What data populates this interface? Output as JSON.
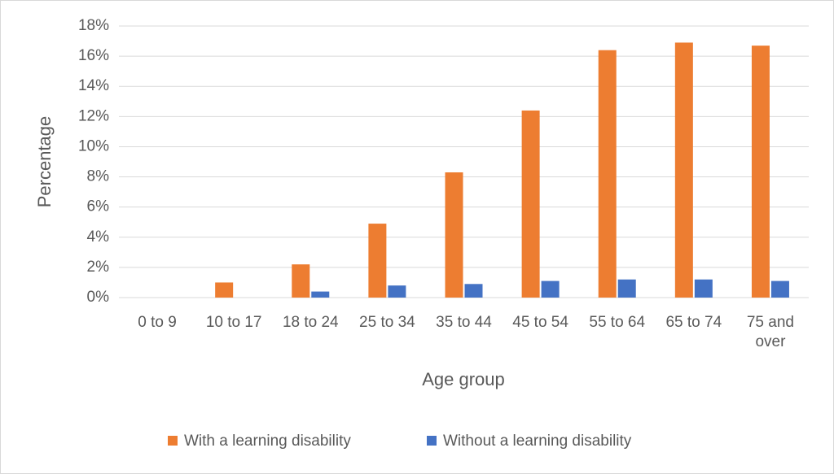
{
  "chart_data": {
    "type": "bar",
    "x_label": "Age group",
    "y_label": "Percentage",
    "categories": [
      "0 to 9",
      "10 to 17",
      "18 to 24",
      "25 to 34",
      "35 to 44",
      "45 to 54",
      "55 to 64",
      "65 to 74",
      "75 and over"
    ],
    "series": [
      {
        "name": "With a learning disability",
        "color": "#ed7d31",
        "values": [
          0,
          1.0,
          2.2,
          4.9,
          8.3,
          12.4,
          16.4,
          16.9,
          16.7
        ]
      },
      {
        "name": "Without a learning disability",
        "color": "#4472c4",
        "values": [
          0,
          0,
          0.4,
          0.8,
          0.9,
          1.1,
          1.2,
          1.2,
          1.1
        ]
      }
    ],
    "ylim": [
      0,
      18
    ],
    "yticks": [
      {
        "value": 0,
        "label": "0%"
      },
      {
        "value": 2,
        "label": "2%"
      },
      {
        "value": 4,
        "label": "4%"
      },
      {
        "value": 6,
        "label": "6%"
      },
      {
        "value": 8,
        "label": "8%"
      },
      {
        "value": 10,
        "label": "10%"
      },
      {
        "value": 12,
        "label": "12%"
      },
      {
        "value": 14,
        "label": "14%"
      },
      {
        "value": 16,
        "label": "16%"
      },
      {
        "value": 18,
        "label": "18%"
      }
    ],
    "grid": true,
    "legend": "bottom"
  }
}
